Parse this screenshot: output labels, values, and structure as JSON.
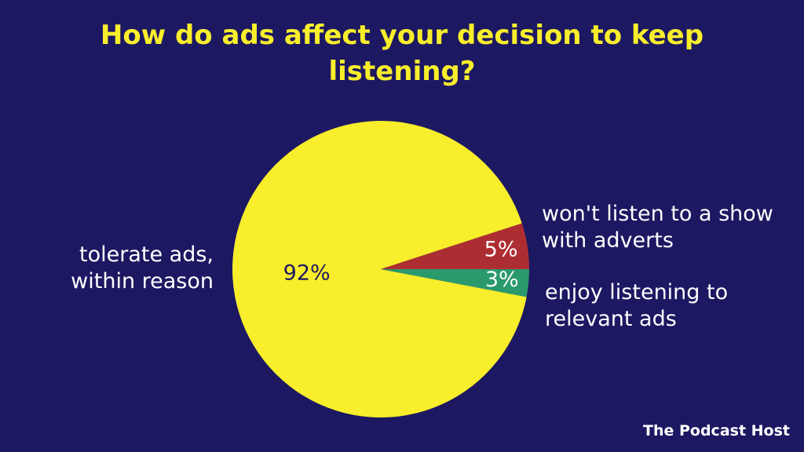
{
  "chart_data": {
    "type": "pie",
    "title": "How do ads affect your decision to keep listening?",
    "categories": [
      "tolerate ads, within reason",
      "won't listen to a show with adverts",
      "enjoy listening to relevant ads"
    ],
    "values": [
      92,
      5,
      3
    ],
    "value_labels": [
      "92%",
      "5%",
      "3%"
    ],
    "colors": [
      "#f8ee2b",
      "#ad2e32",
      "#2a9a6c"
    ]
  },
  "footer": {
    "brand": "The Podcast Host"
  }
}
